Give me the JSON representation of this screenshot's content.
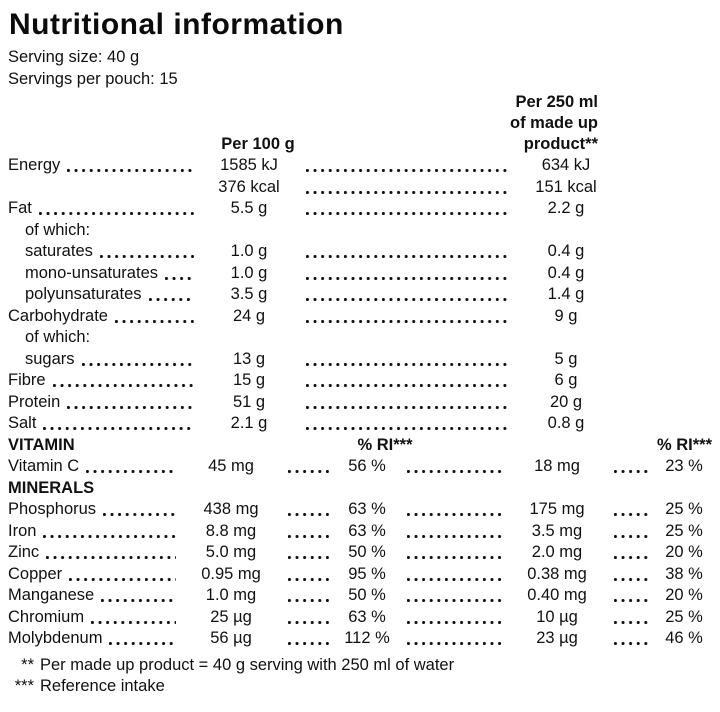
{
  "title": "Nutritional information",
  "serving_size": "Serving size: 40 g",
  "servings_per_pouch": "Servings per pouch: 15",
  "col_headers": {
    "per_100g": "Per 100 g",
    "per_250ml_line1": "Per 250 ml",
    "per_250ml_line2": "of made up",
    "per_250ml_line3": "product**",
    "ri": "% RI***"
  },
  "sections": {
    "vitamin": "VITAMIN",
    "minerals": "MINERALS"
  },
  "of_which": "of which:",
  "rows": {
    "energy": {
      "label": "Energy",
      "v1": "1585 kJ",
      "v2": "634 kJ"
    },
    "energy_kcal": {
      "v1": "376 kcal",
      "v2": "151 kcal"
    },
    "fat": {
      "label": "Fat",
      "v1": "5.5 g",
      "v2": "2.2 g"
    },
    "saturates": {
      "label": "saturates",
      "v1": "1.0 g",
      "v2": "0.4 g"
    },
    "mono_unsaturates": {
      "label": "mono-unsaturates",
      "v1": "1.0 g",
      "v2": "0.4 g"
    },
    "polyunsaturates": {
      "label": "polyunsaturates",
      "v1": "3.5 g",
      "v2": "1.4 g"
    },
    "carbohydrate": {
      "label": "Carbohydrate",
      "v1": "24 g",
      "v2": "9 g"
    },
    "sugars": {
      "label": "sugars",
      "v1": "13 g",
      "v2": "5 g"
    },
    "fibre": {
      "label": "Fibre",
      "v1": "15 g",
      "v2": "6 g"
    },
    "protein": {
      "label": "Protein",
      "v1": "51 g",
      "v2": "20 g"
    },
    "salt": {
      "label": "Salt",
      "v1": "2.1 g",
      "v2": "0.8 g"
    },
    "vitamin_c": {
      "label": "Vitamin C",
      "v1": "45 mg",
      "p1": "56 %",
      "v2": "18 mg",
      "p2": "23 %"
    },
    "phosphorus": {
      "label": "Phosphorus",
      "v1": "438 mg",
      "p1": "63 %",
      "v2": "175 mg",
      "p2": "25 %"
    },
    "iron": {
      "label": "Iron",
      "v1": "8.8 mg",
      "p1": "63 %",
      "v2": "3.5 mg",
      "p2": "25 %"
    },
    "zinc": {
      "label": "Zinc",
      "v1": "5.0 mg",
      "p1": "50 %",
      "v2": "2.0 mg",
      "p2": "20 %"
    },
    "copper": {
      "label": "Copper",
      "v1": "0.95 mg",
      "p1": "95 %",
      "v2": "0.38 mg",
      "p2": "38 %"
    },
    "manganese": {
      "label": "Manganese",
      "v1": "1.0 mg",
      "p1": "50 %",
      "v2": "0.40 mg",
      "p2": "20 %"
    },
    "chromium": {
      "label": "Chromium",
      "v1": "25 µg",
      "p1": "63 %",
      "v2": "10 µg",
      "p2": "25 %"
    },
    "molybdenum": {
      "label": "Molybdenum",
      "v1": "56 µg",
      "p1": "112 %",
      "v2": "23 µg",
      "p2": "46 %"
    }
  },
  "footnotes": [
    {
      "marker": "**",
      "text": "Per made up product = 40 g serving with 250 ml of water"
    },
    {
      "marker": "***",
      "text": "Reference intake"
    }
  ]
}
